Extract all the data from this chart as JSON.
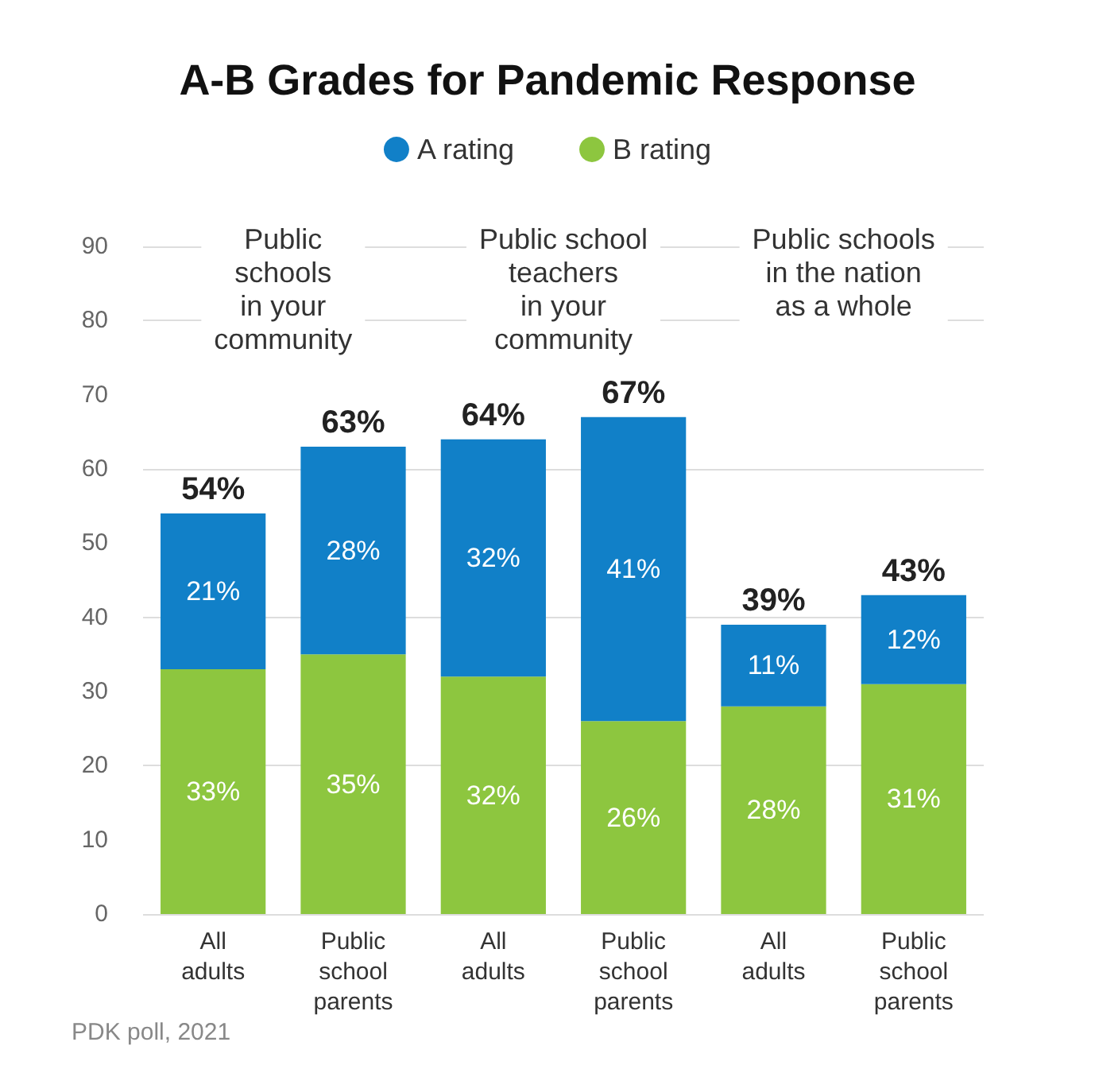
{
  "chart_data": {
    "type": "bar",
    "title": "A-B Grades for Pandemic Response",
    "categories": [
      "All\nadults",
      "Public\nschool\nparents",
      "All\nadults",
      "Public\nschool\nparents",
      "All\nadults",
      "Public\nschool\nparents"
    ],
    "stacked": true,
    "series": [
      {
        "name": "B rating",
        "color": "#8dc63f",
        "values": [
          33,
          35,
          32,
          26,
          28,
          31
        ],
        "value_labels": [
          "33%",
          "35%",
          "32%",
          "26%",
          "28%",
          "31%"
        ]
      },
      {
        "name": "A rating",
        "color": "#1180c8",
        "values": [
          21,
          28,
          32,
          41,
          11,
          12
        ],
        "value_labels": [
          "21%",
          "28%",
          "32%",
          "41%",
          "11%",
          "12%"
        ]
      }
    ],
    "totals": [
      "54%",
      "63%",
      "64%",
      "67%",
      "39%",
      "43%"
    ],
    "ylim": [
      0,
      90
    ],
    "yticks": [
      0,
      10,
      20,
      30,
      40,
      50,
      60,
      70,
      80,
      90
    ],
    "grid": "y",
    "legend": "top",
    "annotations": [
      "Public\nschools\nin your\ncommunity",
      "Public school\nteachers\nin your\ncommunity",
      "Public schools\nin the nation\nas a whole",
      "PDK poll, 2021"
    ]
  }
}
